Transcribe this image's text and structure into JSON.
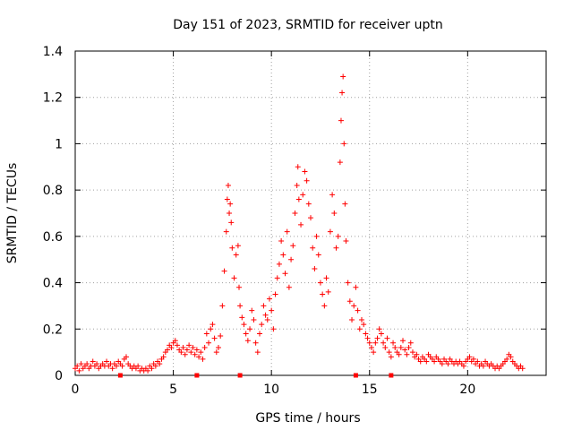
{
  "chart_data": {
    "type": "scatter",
    "title": "Day 151 of 2023, SRMTID for receiver uptn",
    "xlabel": "GPS time / hours",
    "ylabel": "SRMTID / TECUs",
    "xlim": [
      0,
      24
    ],
    "ylim": [
      0,
      1.4
    ],
    "x_ticks": [
      0,
      5,
      10,
      15,
      20
    ],
    "x_tick_labels": [
      "0",
      "5",
      "10",
      "15",
      "20"
    ],
    "y_ticks": [
      0,
      0.2,
      0.4,
      0.6,
      0.8,
      1.0,
      1.2,
      1.4
    ],
    "y_tick_labels": [
      "0",
      "0.2",
      "0.4",
      "0.6",
      "0.8",
      "1",
      "1.2",
      "1.4"
    ],
    "grid": true,
    "marker": "+",
    "color": "#ff0000",
    "series": [
      {
        "name": "SRMTID",
        "points": [
          [
            0.0,
            0.03
          ],
          [
            0.1,
            0.04
          ],
          [
            0.2,
            0.02
          ],
          [
            0.3,
            0.05
          ],
          [
            0.4,
            0.03
          ],
          [
            0.5,
            0.04
          ],
          [
            0.6,
            0.05
          ],
          [
            0.7,
            0.03
          ],
          [
            0.8,
            0.04
          ],
          [
            0.9,
            0.06
          ],
          [
            1.0,
            0.04
          ],
          [
            1.1,
            0.05
          ],
          [
            1.2,
            0.03
          ],
          [
            1.3,
            0.04
          ],
          [
            1.4,
            0.05
          ],
          [
            1.5,
            0.04
          ],
          [
            1.6,
            0.06
          ],
          [
            1.7,
            0.04
          ],
          [
            1.8,
            0.05
          ],
          [
            1.9,
            0.03
          ],
          [
            2.0,
            0.05
          ],
          [
            2.1,
            0.04
          ],
          [
            2.2,
            0.06
          ],
          [
            2.3,
            0.05
          ],
          [
            2.4,
            0.04
          ],
          [
            2.5,
            0.07
          ],
          [
            2.6,
            0.08
          ],
          [
            2.7,
            0.05
          ],
          [
            2.8,
            0.04
          ],
          [
            2.9,
            0.03
          ],
          [
            3.0,
            0.04
          ],
          [
            3.1,
            0.03
          ],
          [
            3.2,
            0.04
          ],
          [
            3.3,
            0.02
          ],
          [
            3.4,
            0.03
          ],
          [
            3.5,
            0.02
          ],
          [
            3.6,
            0.03
          ],
          [
            3.7,
            0.02
          ],
          [
            3.8,
            0.04
          ],
          [
            3.9,
            0.03
          ],
          [
            4.0,
            0.05
          ],
          [
            4.1,
            0.04
          ],
          [
            4.2,
            0.06
          ],
          [
            4.3,
            0.05
          ],
          [
            4.4,
            0.07
          ],
          [
            4.5,
            0.08
          ],
          [
            4.6,
            0.1
          ],
          [
            4.7,
            0.11
          ],
          [
            4.8,
            0.13
          ],
          [
            4.9,
            0.12
          ],
          [
            5.0,
            0.14
          ],
          [
            5.1,
            0.15
          ],
          [
            5.2,
            0.13
          ],
          [
            5.3,
            0.11
          ],
          [
            5.4,
            0.1
          ],
          [
            5.5,
            0.12
          ],
          [
            5.6,
            0.09
          ],
          [
            5.7,
            0.11
          ],
          [
            5.8,
            0.13
          ],
          [
            5.9,
            0.1
          ],
          [
            6.0,
            0.12
          ],
          [
            6.1,
            0.09
          ],
          [
            6.2,
            0.11
          ],
          [
            6.3,
            0.08
          ],
          [
            6.4,
            0.1
          ],
          [
            6.5,
            0.07
          ],
          [
            6.6,
            0.12
          ],
          [
            6.7,
            0.18
          ],
          [
            6.8,
            0.14
          ],
          [
            6.9,
            0.2
          ],
          [
            7.0,
            0.22
          ],
          [
            7.1,
            0.16
          ],
          [
            7.2,
            0.1
          ],
          [
            7.3,
            0.12
          ],
          [
            7.4,
            0.17
          ],
          [
            7.5,
            0.3
          ],
          [
            7.6,
            0.45
          ],
          [
            7.7,
            0.62
          ],
          [
            7.75,
            0.76
          ],
          [
            7.8,
            0.82
          ],
          [
            7.85,
            0.7
          ],
          [
            7.9,
            0.74
          ],
          [
            7.95,
            0.66
          ],
          [
            8.0,
            0.55
          ],
          [
            8.1,
            0.42
          ],
          [
            8.2,
            0.52
          ],
          [
            8.3,
            0.56
          ],
          [
            8.35,
            0.38
          ],
          [
            8.4,
            0.3
          ],
          [
            8.5,
            0.25
          ],
          [
            8.6,
            0.22
          ],
          [
            8.7,
            0.18
          ],
          [
            8.8,
            0.15
          ],
          [
            8.9,
            0.2
          ],
          [
            9.0,
            0.28
          ],
          [
            9.1,
            0.24
          ],
          [
            9.2,
            0.14
          ],
          [
            9.3,
            0.1
          ],
          [
            9.4,
            0.18
          ],
          [
            9.5,
            0.22
          ],
          [
            9.6,
            0.3
          ],
          [
            9.7,
            0.26
          ],
          [
            9.8,
            0.24
          ],
          [
            9.9,
            0.33
          ],
          [
            10.0,
            0.28
          ],
          [
            10.1,
            0.2
          ],
          [
            10.2,
            0.35
          ],
          [
            10.3,
            0.42
          ],
          [
            10.4,
            0.48
          ],
          [
            10.5,
            0.58
          ],
          [
            10.6,
            0.52
          ],
          [
            10.7,
            0.44
          ],
          [
            10.8,
            0.62
          ],
          [
            10.9,
            0.38
          ],
          [
            11.0,
            0.5
          ],
          [
            11.1,
            0.56
          ],
          [
            11.2,
            0.7
          ],
          [
            11.3,
            0.82
          ],
          [
            11.35,
            0.9
          ],
          [
            11.4,
            0.76
          ],
          [
            11.5,
            0.65
          ],
          [
            11.6,
            0.78
          ],
          [
            11.7,
            0.88
          ],
          [
            11.8,
            0.84
          ],
          [
            11.9,
            0.74
          ],
          [
            12.0,
            0.68
          ],
          [
            12.1,
            0.55
          ],
          [
            12.2,
            0.46
          ],
          [
            12.3,
            0.6
          ],
          [
            12.4,
            0.52
          ],
          [
            12.5,
            0.4
          ],
          [
            12.6,
            0.35
          ],
          [
            12.7,
            0.3
          ],
          [
            12.8,
            0.42
          ],
          [
            12.9,
            0.36
          ],
          [
            13.0,
            0.62
          ],
          [
            13.1,
            0.78
          ],
          [
            13.2,
            0.7
          ],
          [
            13.3,
            0.55
          ],
          [
            13.4,
            0.6
          ],
          [
            13.5,
            0.92
          ],
          [
            13.55,
            1.1
          ],
          [
            13.6,
            1.22
          ],
          [
            13.65,
            1.29
          ],
          [
            13.7,
            1.0
          ],
          [
            13.75,
            0.74
          ],
          [
            13.8,
            0.58
          ],
          [
            13.9,
            0.4
          ],
          [
            14.0,
            0.32
          ],
          [
            14.1,
            0.24
          ],
          [
            14.2,
            0.3
          ],
          [
            14.3,
            0.38
          ],
          [
            14.4,
            0.28
          ],
          [
            14.5,
            0.2
          ],
          [
            14.6,
            0.24
          ],
          [
            14.7,
            0.22
          ],
          [
            14.8,
            0.18
          ],
          [
            14.9,
            0.16
          ],
          [
            15.0,
            0.14
          ],
          [
            15.1,
            0.12
          ],
          [
            15.2,
            0.1
          ],
          [
            15.3,
            0.14
          ],
          [
            15.4,
            0.16
          ],
          [
            15.5,
            0.2
          ],
          [
            15.6,
            0.18
          ],
          [
            15.7,
            0.14
          ],
          [
            15.8,
            0.12
          ],
          [
            15.9,
            0.16
          ],
          [
            16.0,
            0.1
          ],
          [
            16.1,
            0.08
          ],
          [
            16.2,
            0.14
          ],
          [
            16.3,
            0.12
          ],
          [
            16.4,
            0.1
          ],
          [
            16.5,
            0.09
          ],
          [
            16.6,
            0.12
          ],
          [
            16.7,
            0.15
          ],
          [
            16.8,
            0.11
          ],
          [
            16.9,
            0.09
          ],
          [
            17.0,
            0.12
          ],
          [
            17.1,
            0.14
          ],
          [
            17.2,
            0.1
          ],
          [
            17.3,
            0.08
          ],
          [
            17.4,
            0.09
          ],
          [
            17.5,
            0.07
          ],
          [
            17.6,
            0.06
          ],
          [
            17.7,
            0.08
          ],
          [
            17.8,
            0.07
          ],
          [
            17.9,
            0.06
          ],
          [
            18.0,
            0.09
          ],
          [
            18.1,
            0.08
          ],
          [
            18.2,
            0.07
          ],
          [
            18.3,
            0.06
          ],
          [
            18.4,
            0.08
          ],
          [
            18.5,
            0.07
          ],
          [
            18.6,
            0.06
          ],
          [
            18.7,
            0.05
          ],
          [
            18.8,
            0.07
          ],
          [
            18.9,
            0.06
          ],
          [
            19.0,
            0.05
          ],
          [
            19.1,
            0.07
          ],
          [
            19.2,
            0.06
          ],
          [
            19.3,
            0.05
          ],
          [
            19.4,
            0.06
          ],
          [
            19.5,
            0.05
          ],
          [
            19.6,
            0.06
          ],
          [
            19.7,
            0.05
          ],
          [
            19.8,
            0.04
          ],
          [
            19.9,
            0.06
          ],
          [
            20.0,
            0.07
          ],
          [
            20.1,
            0.08
          ],
          [
            20.2,
            0.06
          ],
          [
            20.3,
            0.07
          ],
          [
            20.4,
            0.05
          ],
          [
            20.5,
            0.06
          ],
          [
            20.6,
            0.04
          ],
          [
            20.7,
            0.05
          ],
          [
            20.8,
            0.04
          ],
          [
            20.9,
            0.06
          ],
          [
            21.0,
            0.05
          ],
          [
            21.1,
            0.04
          ],
          [
            21.2,
            0.05
          ],
          [
            21.3,
            0.04
          ],
          [
            21.4,
            0.03
          ],
          [
            21.5,
            0.04
          ],
          [
            21.6,
            0.03
          ],
          [
            21.7,
            0.04
          ],
          [
            21.8,
            0.05
          ],
          [
            21.9,
            0.06
          ],
          [
            22.0,
            0.07
          ],
          [
            22.1,
            0.09
          ],
          [
            22.2,
            0.08
          ],
          [
            22.3,
            0.06
          ],
          [
            22.4,
            0.05
          ],
          [
            22.5,
            0.04
          ],
          [
            22.6,
            0.03
          ],
          [
            22.7,
            0.04
          ],
          [
            22.8,
            0.03
          ]
        ]
      }
    ],
    "baseline_markers_x": [
      2.3,
      6.2,
      8.4,
      14.3,
      16.1
    ]
  }
}
